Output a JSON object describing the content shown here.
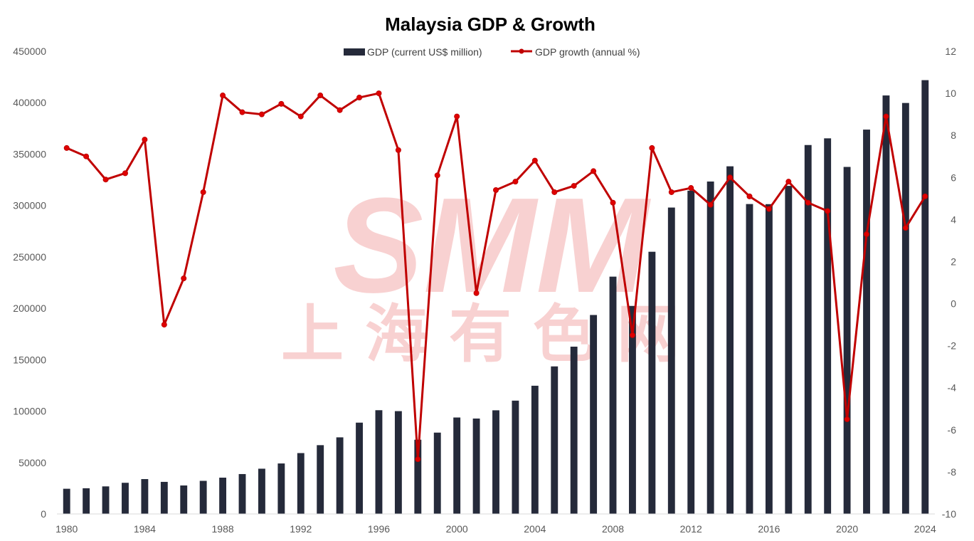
{
  "chart_data": {
    "type": "bar+line",
    "title": "Malaysia GDP & Growth",
    "x": [
      1980,
      1981,
      1982,
      1983,
      1984,
      1985,
      1986,
      1987,
      1988,
      1989,
      1990,
      1991,
      1992,
      1993,
      1994,
      1995,
      1996,
      1997,
      1998,
      1999,
      2000,
      2001,
      2002,
      2003,
      2004,
      2005,
      2006,
      2007,
      2008,
      2009,
      2010,
      2011,
      2012,
      2013,
      2014,
      2015,
      2016,
      2017,
      2018,
      2019,
      2020,
      2021,
      2022,
      2023,
      2024
    ],
    "x_tick_labels": [
      "1980",
      "1984",
      "1988",
      "1992",
      "1996",
      "2000",
      "2004",
      "2008",
      "2012",
      "2016",
      "2020",
      "2024"
    ],
    "series": [
      {
        "name": "GDP (current US$ million)",
        "type": "bar",
        "axis": "left",
        "color": "#252a3a",
        "values": [
          24500,
          25000,
          26800,
          30300,
          33900,
          31200,
          27700,
          32200,
          35300,
          38800,
          44000,
          49100,
          59200,
          66900,
          74500,
          88800,
          100900,
          100000,
          72200,
          79100,
          93800,
          92800,
          100800,
          110200,
          124700,
          143500,
          162700,
          193500,
          230800,
          202300,
          255000,
          298000,
          314400,
          323300,
          338100,
          301400,
          301300,
          319100,
          358800,
          365300,
          337500,
          373800,
          407000,
          399700,
          421900
        ]
      },
      {
        "name": "GDP growth (annual %)",
        "type": "line",
        "axis": "right",
        "color": "#c00000",
        "values": [
          7.4,
          7.0,
          5.9,
          6.2,
          7.8,
          -1.0,
          1.2,
          5.3,
          9.9,
          9.1,
          9.0,
          9.5,
          8.9,
          9.9,
          9.2,
          9.8,
          10.0,
          7.3,
          -7.4,
          6.1,
          8.9,
          0.5,
          5.4,
          5.8,
          6.8,
          5.3,
          5.6,
          6.3,
          4.8,
          -1.5,
          7.4,
          5.3,
          5.5,
          4.7,
          6.0,
          5.1,
          4.5,
          5.8,
          4.8,
          4.4,
          -5.5,
          3.3,
          8.9,
          3.6,
          5.1
        ]
      }
    ],
    "y_left": {
      "min": 0,
      "max": 450000,
      "step": 50000,
      "tick_labels": [
        "0",
        "50000",
        "100000",
        "150000",
        "200000",
        "250000",
        "300000",
        "350000",
        "400000",
        "450000"
      ]
    },
    "y_right": {
      "min": -10,
      "max": 12,
      "step": 2,
      "tick_labels": [
        "-10",
        "-8",
        "-6",
        "-4",
        "-2",
        "0",
        "2",
        "4",
        "6",
        "8",
        "10",
        "12"
      ]
    },
    "grid": false,
    "legend": "top-center"
  },
  "watermark": {
    "latin": "SMM",
    "chinese": "上海有色网",
    "color": "#f7c9c9"
  }
}
